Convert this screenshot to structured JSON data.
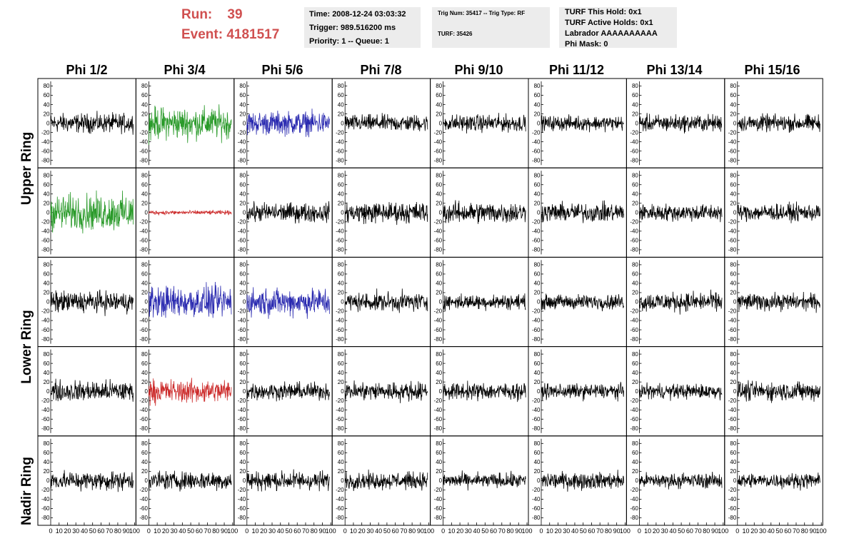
{
  "header": {
    "run_label": "Run:    39",
    "event_label": "Event: 4181517",
    "time_line": "Time: 2008-12-24 03:03:32",
    "trigger_line": "Trigger: 989.516200 ms",
    "priority_line": "Priority: 1 -- Queue: 1",
    "trig_num_line": "Trig Num: 35417 -- Trig Type: RF",
    "turf_line": "TURF: 35426",
    "turf_hold_line": "TURF This Hold: 0x1",
    "turf_active_line": "TURF Active Holds: 0x1",
    "labrador_line": "Labrador AAAAAAAAAA",
    "phi_mask_line": "Phi Mask: 0"
  },
  "columns": [
    "Phi 1/2",
    "Phi 3/4",
    "Phi 5/6",
    "Phi 7/8",
    "Phi 9/10",
    "Phi 11/12",
    "Phi 13/14",
    "Phi 15/16"
  ],
  "rings": [
    "Upper Ring",
    "Lower Ring",
    "Nadir Ring"
  ],
  "y_ticks": [
    "80",
    "60",
    "40",
    "20",
    "0",
    "-20",
    "-40",
    "-60",
    "-80"
  ],
  "x_ticks": [
    "0",
    "10",
    "20",
    "30",
    "40",
    "50",
    "60",
    "70",
    "80",
    "90",
    "100"
  ],
  "colors": {
    "black": "#000000",
    "green": "#2a9a2a",
    "blue": "#2a2ab0",
    "red": "#cc2a2a",
    "accent_text": "#d05050",
    "info_box_bg": "#ececec"
  },
  "chart_data": {
    "type": "line",
    "xlim": [
      0,
      100
    ],
    "ylim": [
      -90,
      90
    ],
    "rows": 5,
    "cols": 8,
    "panel_colors": [
      [
        "black",
        "green",
        "blue",
        "black",
        "black",
        "black",
        "black",
        "black"
      ],
      [
        "green",
        "red",
        "black",
        "black",
        "black",
        "black",
        "black",
        "black"
      ],
      [
        "black",
        "blue",
        "blue",
        "black",
        "black",
        "black",
        "black",
        "black"
      ],
      [
        "black",
        "red",
        "black",
        "black",
        "black",
        "black",
        "black",
        "black"
      ],
      [
        "black",
        "black",
        "black",
        "black",
        "black",
        "black",
        "black",
        "black"
      ]
    ],
    "panel_amplitude": [
      [
        18,
        30,
        22,
        16,
        16,
        14,
        16,
        16
      ],
      [
        34,
        4,
        18,
        20,
        20,
        18,
        16,
        16
      ],
      [
        20,
        30,
        26,
        18,
        14,
        14,
        18,
        16
      ],
      [
        20,
        22,
        16,
        18,
        16,
        14,
        14,
        18
      ],
      [
        18,
        18,
        18,
        16,
        14,
        16,
        14,
        14
      ]
    ]
  }
}
